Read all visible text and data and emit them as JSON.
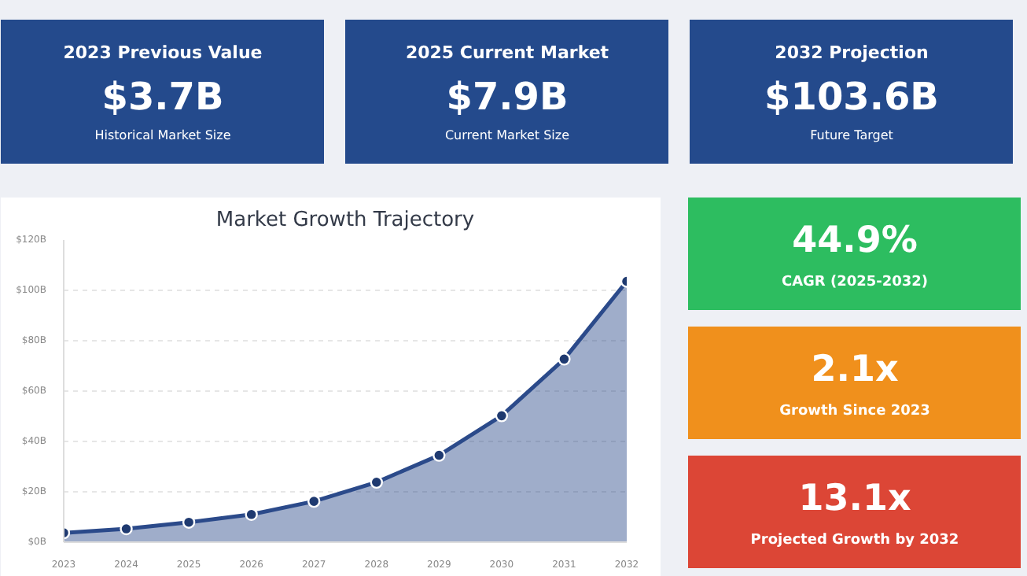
{
  "chart_data": [
    {
      "type": "other",
      "title": "2023 Previous Value",
      "annotations": [
        "$3.7B"
      ],
      "subtitle": "Historical Market Size",
      "color": "#244a8c"
    },
    {
      "type": "other",
      "title": "2025 Current Market",
      "annotations": [
        "$7.9B"
      ],
      "subtitle": "Current Market Size",
      "color": "#244a8c"
    },
    {
      "type": "other",
      "title": "2032 Projection",
      "annotations": [
        "$103.6B"
      ],
      "subtitle": "Future Target",
      "color": "#244a8c"
    },
    {
      "type": "area",
      "title": "Market Growth Trajectory",
      "x": [
        2023,
        2024,
        2025,
        2026,
        2027,
        2028,
        2029,
        2030,
        2031,
        2032
      ],
      "series": [
        {
          "color": "#2b4a8a",
          "values": [
            3.7,
            5.3,
            7.9,
            11.0,
            16.2,
            23.8,
            34.5,
            50.2,
            72.7,
            103.6
          ]
        }
      ],
      "xlim": [
        2023,
        2032
      ],
      "xticks": [
        2023,
        2024,
        2025,
        2026,
        2027,
        2028,
        2029,
        2030,
        2031,
        2032
      ],
      "ylim": [
        0,
        120
      ],
      "yticks": [
        {
          "value": 0,
          "label": "$0B"
        },
        {
          "value": 20,
          "label": "$20B"
        },
        {
          "value": 40,
          "label": "$40B"
        },
        {
          "value": 60,
          "label": "$60B"
        },
        {
          "value": 80,
          "label": "$80B"
        },
        {
          "value": 100,
          "label": "$100B"
        },
        {
          "value": 120,
          "label": "$120B"
        }
      ],
      "grid": "y",
      "marker": "circle"
    },
    {
      "type": "other",
      "title": "44.9%",
      "subtitle": "CAGR (2025-2032)",
      "color": "#2dbd60"
    },
    {
      "type": "other",
      "title": "2.1x",
      "subtitle": "Growth Since 2023",
      "color": "#f0901c"
    },
    {
      "type": "other",
      "title": "13.1x",
      "subtitle": "Projected Growth by 2032",
      "color": "#dc4636"
    }
  ]
}
